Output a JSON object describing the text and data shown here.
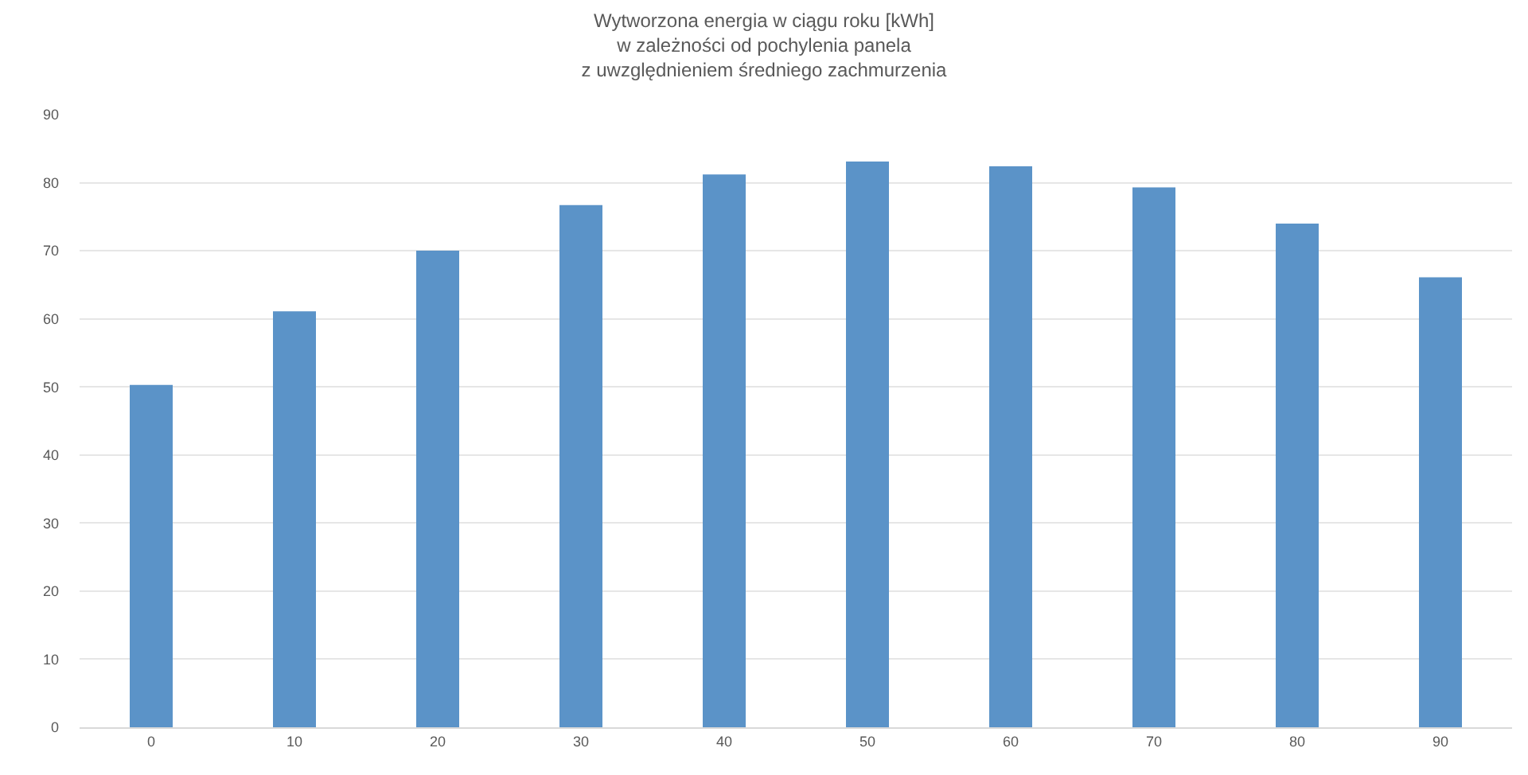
{
  "chart_data": {
    "type": "bar",
    "title": "Wytworzona energia w ciągu roku [kWh]\nw zależności od pochylenia panela\nz uwzględnieniem średniego zachmurzenia",
    "categories": [
      "0",
      "10",
      "20",
      "30",
      "40",
      "50",
      "60",
      "70",
      "80",
      "90"
    ],
    "values": [
      50.3,
      61.1,
      70.0,
      76.7,
      81.2,
      83.1,
      82.4,
      79.3,
      74.0,
      66.1
    ],
    "color": "#5b93c8",
    "ylim": [
      0,
      90
    ],
    "yticks": [
      0,
      10,
      20,
      30,
      40,
      50,
      60,
      70,
      80,
      90
    ],
    "grid": "y"
  }
}
